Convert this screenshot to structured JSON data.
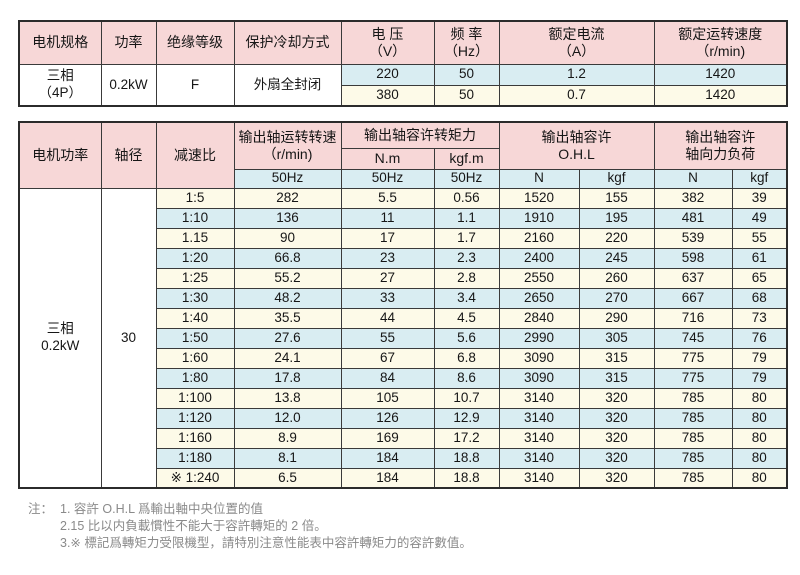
{
  "colors": {
    "header_pink": "#f7d7d7",
    "row_blue": "#d9edf2",
    "row_cream": "#fdfae8",
    "border_dark": "#3a3a3a",
    "note_gray": "#8a8a8a"
  },
  "table1": {
    "headers": {
      "motor_spec": "电机规格",
      "power": "功率",
      "insulation": "绝缘等级",
      "cooling": "保护冷却方式",
      "voltage": "电 压\n（V）",
      "frequency": "频 率\n（Hz）",
      "current": "额定电流\n（A）",
      "speed": "额定运转速度\n（r/min)"
    },
    "motor_type": "三相\n（4P）",
    "power": "0.2kW",
    "insulation": "F",
    "cooling": "外扇全封闭",
    "rows": [
      {
        "voltage": "220",
        "frequency": "50",
        "current": "1.2",
        "speed": "1420"
      },
      {
        "voltage": "380",
        "frequency": "50",
        "current": "0.7",
        "speed": "1420"
      }
    ]
  },
  "table2": {
    "headers": {
      "motor_power": "电机功率",
      "shaft_dia": "轴径",
      "ratio": "减速比",
      "output_speed": "输出轴运转转速\n（r/min)",
      "torque": "输出轴容许转矩力",
      "torque_nm": "N.m",
      "torque_kgfm": "kgf.m",
      "ohl": "输出轴容许\nO.H.L",
      "axial": "输出轴容许\n轴向力负荷",
      "hz50": "50Hz",
      "n": "N",
      "kgf": "kgf"
    },
    "motor_power": "三相\n0.2kW",
    "shaft_dia": "30",
    "rows": [
      [
        "1:5",
        "282",
        "5.5",
        "0.56",
        "1520",
        "155",
        "382",
        "39"
      ],
      [
        "1:10",
        "136",
        "11",
        "1.1",
        "1910",
        "195",
        "481",
        "49"
      ],
      [
        "1.15",
        "90",
        "17",
        "1.7",
        "2160",
        "220",
        "539",
        "55"
      ],
      [
        "1:20",
        "66.8",
        "23",
        "2.3",
        "2400",
        "245",
        "598",
        "61"
      ],
      [
        "1:25",
        "55.2",
        "27",
        "2.8",
        "2550",
        "260",
        "637",
        "65"
      ],
      [
        "1:30",
        "48.2",
        "33",
        "3.4",
        "2650",
        "270",
        "667",
        "68"
      ],
      [
        "1:40",
        "35.5",
        "44",
        "4.5",
        "2840",
        "290",
        "716",
        "73"
      ],
      [
        "1:50",
        "27.6",
        "55",
        "5.6",
        "2990",
        "305",
        "745",
        "76"
      ],
      [
        "1:60",
        "24.1",
        "67",
        "6.8",
        "3090",
        "315",
        "775",
        "79"
      ],
      [
        "1:80",
        "17.8",
        "84",
        "8.6",
        "3090",
        "315",
        "775",
        "79"
      ],
      [
        "1:100",
        "13.8",
        "105",
        "10.7",
        "3140",
        "320",
        "785",
        "80"
      ],
      [
        "1:120",
        "12.0",
        "126",
        "12.9",
        "3140",
        "320",
        "785",
        "80"
      ],
      [
        "1:160",
        "8.9",
        "169",
        "17.2",
        "3140",
        "320",
        "785",
        "80"
      ],
      [
        "1:180",
        "8.1",
        "184",
        "18.8",
        "3140",
        "320",
        "785",
        "80"
      ],
      [
        "※ 1:240",
        "6.5",
        "184",
        "18.8",
        "3140",
        "320",
        "785",
        "80"
      ]
    ],
    "cell_names": [
      "ratio-cell",
      "output-speed-cell",
      "torque-nm-cell",
      "torque-kgfm-cell",
      "ohl-n-cell",
      "ohl-kgf-cell",
      "axial-n-cell",
      "axial-kgf-cell"
    ]
  },
  "notes": {
    "label": "注：",
    "lines": [
      "1. 容許 O.H.L 爲輸出軸中央位置的值",
      "2.15 比以内負載慣性不能大于容許轉矩的 2 倍。",
      "3.※ 標記爲轉矩力受限機型，請特別注意性能表中容許轉矩力的容許數值。"
    ]
  }
}
